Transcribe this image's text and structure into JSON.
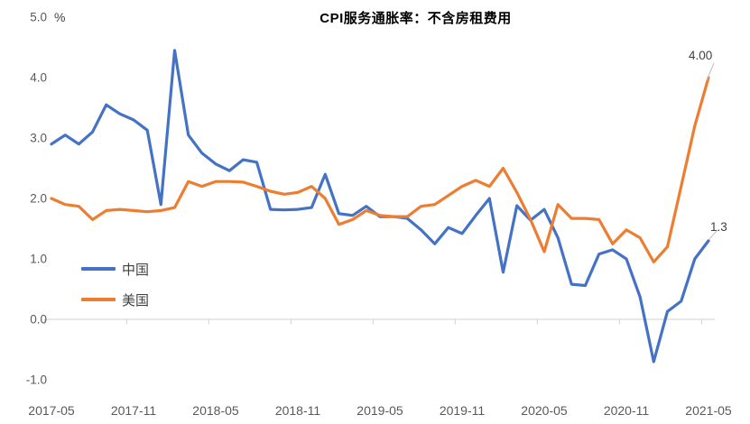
{
  "chart_data": {
    "type": "line",
    "title": "CPI服务通胀率：不含房租费用",
    "y_unit": "%",
    "ylim": [
      -1.0,
      5.0
    ],
    "y_ticks": [
      "5.0",
      "4.0",
      "3.0",
      "2.0",
      "1.0",
      "0.0",
      "-1.0"
    ],
    "y_tick_values": [
      5,
      4,
      3,
      2,
      1,
      0,
      -1
    ],
    "x_start": "2017-05",
    "x_end": "2021-05",
    "x_interval": "monthly",
    "x_tick_labels": [
      "2017-05",
      "2017-11",
      "2018-05",
      "2018-11",
      "2019-05",
      "2019-11",
      "2020-05",
      "2020-11",
      "2021-05"
    ],
    "grid": "zero-axis-line-only",
    "legend_position": "left-middle",
    "series": [
      {
        "name": "中国",
        "color": "#4472C4",
        "end_label": "1.3",
        "values": [
          2.9,
          3.05,
          2.9,
          3.1,
          3.55,
          3.4,
          3.3,
          3.13,
          1.9,
          4.45,
          3.05,
          2.75,
          2.57,
          2.46,
          2.64,
          2.6,
          1.82,
          1.81,
          1.82,
          1.85,
          2.4,
          1.75,
          1.72,
          1.87,
          1.7,
          1.7,
          1.67,
          1.48,
          1.25,
          1.52,
          1.42,
          1.72,
          2.0,
          0.78,
          1.88,
          1.64,
          1.82,
          1.35,
          0.58,
          0.56,
          1.08,
          1.15,
          1.0,
          0.37,
          -0.7,
          0.13,
          0.3,
          1.0,
          1.3
        ]
      },
      {
        "name": "美国",
        "color": "#ED7D31",
        "end_label": "4.00",
        "values": [
          2.0,
          1.9,
          1.87,
          1.65,
          1.8,
          1.82,
          1.8,
          1.78,
          1.8,
          1.85,
          2.28,
          2.2,
          2.28,
          2.28,
          2.27,
          2.2,
          2.12,
          2.07,
          2.1,
          2.2,
          2.0,
          1.57,
          1.65,
          1.8,
          1.72,
          1.7,
          1.7,
          1.87,
          1.9,
          2.05,
          2.2,
          2.3,
          2.2,
          2.5,
          2.1,
          1.65,
          1.12,
          1.9,
          1.67,
          1.67,
          1.65,
          1.25,
          1.48,
          1.35,
          0.95,
          1.2,
          2.2,
          3.2,
          4.0
        ]
      }
    ],
    "axis_color": "#d9d9d9",
    "tick_label_color": "#595959"
  }
}
